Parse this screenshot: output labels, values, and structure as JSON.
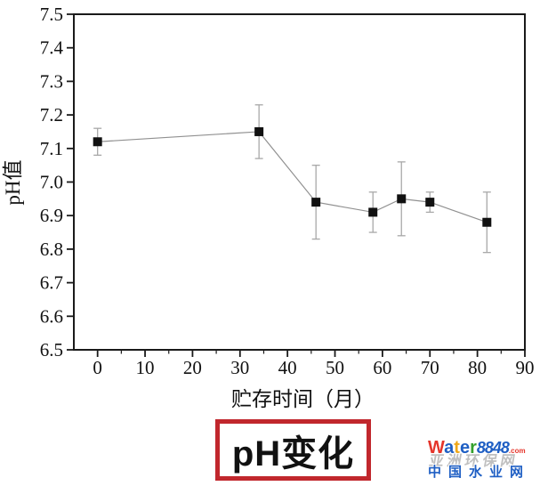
{
  "chart_data": {
    "type": "line",
    "title": "pH变化",
    "xlabel": "贮存时间（月）",
    "ylabel": "pH值",
    "x": [
      0,
      34,
      46,
      58,
      64,
      70,
      82
    ],
    "y": [
      7.12,
      7.15,
      6.94,
      6.91,
      6.95,
      6.94,
      6.88
    ],
    "yerr": [
      0.04,
      0.08,
      0.11,
      0.06,
      0.11,
      0.03,
      0.09
    ],
    "xlim": [
      -5,
      90
    ],
    "ylim": [
      6.5,
      7.5
    ],
    "x_ticks": [
      0,
      10,
      20,
      30,
      40,
      50,
      60,
      70,
      80,
      90
    ],
    "x_minor_ticks": [
      5,
      15,
      25,
      35,
      45,
      55,
      65,
      75,
      85
    ],
    "y_ticks": [
      6.5,
      6.6,
      6.7,
      6.8,
      6.9,
      7.0,
      7.1,
      7.2,
      7.3,
      7.4,
      7.5
    ],
    "grid": false,
    "legend": null,
    "marker": "square",
    "colors": {
      "marker": "#111111",
      "line": "#909090",
      "error": "#a8a8a8",
      "axis": "#1a1a1a",
      "text": "#111111"
    }
  },
  "title_box": {
    "border_color": "#c1272d"
  },
  "watermark": {
    "brand": [
      {
        "ch": "W",
        "color": "#e5352b"
      },
      {
        "ch": "a",
        "color": "#1f5fc4"
      },
      {
        "ch": "t",
        "color": "#f0a818"
      },
      {
        "ch": "e",
        "color": "#1f5fc4"
      },
      {
        "ch": "r",
        "color": "#33a02c"
      }
    ],
    "number": "8848",
    "number_color": "#1f5fc4",
    "tld": ".com",
    "tld_color": "#e5352b",
    "site_name": "中国水业网",
    "site_color": "#1f5fc4",
    "ghost_text": "亚洲环保网"
  }
}
